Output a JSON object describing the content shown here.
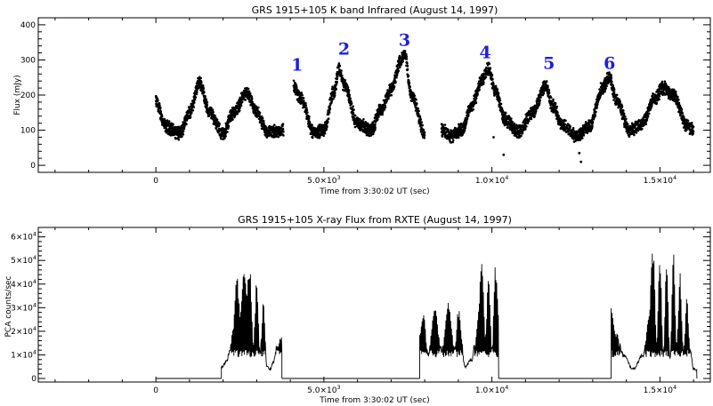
{
  "chart_data": [
    {
      "type": "scatter",
      "title": "GRS 1915+105 K band Infrared (August 14, 1997)",
      "xlabel": "Time from 3:30:02 UT (sec)",
      "ylabel": "Flux (mJy)",
      "xlim": [
        -3500,
        16500
      ],
      "ylim": [
        -20,
        420
      ],
      "x_ticks": [
        {
          "value": 0,
          "base": "0",
          "exp": ""
        },
        {
          "value": 5000,
          "base": "5.0×10",
          "exp": "3"
        },
        {
          "value": 10000,
          "base": "1.0×10",
          "exp": "4"
        },
        {
          "value": 15000,
          "base": "1.5×10",
          "exp": "4"
        }
      ],
      "y_ticks": [
        {
          "value": 0,
          "label": "0"
        },
        {
          "value": 100,
          "label": "100"
        },
        {
          "value": 200,
          "label": "200"
        },
        {
          "value": 300,
          "label": "300"
        },
        {
          "value": 400,
          "label": "400"
        }
      ],
      "segments": [
        {
          "x": [
            0,
            300,
            700,
            1000,
            1300,
            1600,
            2000,
            2300,
            2700,
            3000,
            3300,
            3800
          ],
          "y": [
            180,
            110,
            90,
            150,
            235,
            150,
            90,
            150,
            205,
            150,
            95,
            100
          ]
        },
        {
          "x": [
            4100,
            4300,
            4700,
            5000,
            5300,
            5450,
            5600,
            6000,
            6400,
            6700,
            7000,
            7300,
            7400,
            7600,
            8000
          ],
          "y": [
            225,
            190,
            95,
            100,
            210,
            275,
            230,
            120,
            100,
            160,
            215,
            300,
            315,
            200,
            95
          ]
        },
        {
          "x": [
            8500,
            8800,
            9100,
            9400,
            9700,
            9900,
            10100,
            10400,
            10800,
            11200,
            11600,
            11800,
            12100,
            12500,
            12900,
            13300,
            13500,
            13700,
            14100,
            14500,
            14800,
            15100,
            15400,
            15800,
            16000
          ],
          "y": [
            100,
            85,
            100,
            170,
            240,
            275,
            210,
            130,
            95,
            150,
            225,
            170,
            115,
            85,
            110,
            220,
            250,
            185,
            100,
            120,
            185,
            220,
            200,
            115,
            100
          ]
        }
      ],
      "outliers": {
        "x": [
          10050,
          10350,
          12600,
          12650,
          7350
        ],
        "y": [
          80,
          30,
          35,
          10,
          320
        ]
      },
      "annotations": [
        {
          "label": "1",
          "x": 4200,
          "y": 270
        },
        {
          "label": "2",
          "x": 5600,
          "y": 315
        },
        {
          "label": "3",
          "x": 7400,
          "y": 340
        },
        {
          "label": "4",
          "x": 9800,
          "y": 305
        },
        {
          "label": "5",
          "x": 11700,
          "y": 275
        },
        {
          "label": "6",
          "x": 13500,
          "y": 275
        }
      ]
    },
    {
      "type": "line",
      "title": "GRS 1915+105 X-ray Flux from RXTE (August 14, 1997)",
      "xlabel": "Time from 3:30:02 UT (sec)",
      "ylabel": "PCA counts/sec",
      "xlim": [
        -3500,
        16500
      ],
      "ylim": [
        -1500,
        64000
      ],
      "x_ticks": [
        {
          "value": 0,
          "base": "0",
          "exp": ""
        },
        {
          "value": 5000,
          "base": "5.0×10",
          "exp": "3"
        },
        {
          "value": 10000,
          "base": "1.0×10",
          "exp": "4"
        },
        {
          "value": 15000,
          "base": "1.5×10",
          "exp": "4"
        }
      ],
      "y_ticks": [
        {
          "value": 0,
          "base": "0",
          "exp": ""
        },
        {
          "value": 10000,
          "base": "1×10",
          "exp": "4"
        },
        {
          "value": 20000,
          "base": "2×10",
          "exp": "4"
        },
        {
          "value": 30000,
          "base": "3×10",
          "exp": "4"
        },
        {
          "value": 40000,
          "base": "4×10",
          "exp": "4"
        },
        {
          "value": 50000,
          "base": "5×10",
          "exp": "4"
        },
        {
          "value": 60000,
          "base": "6×10",
          "exp": "4"
        }
      ],
      "baseline": 0,
      "segments": [
        {
          "x": [
            1950,
            2100,
            2200,
            2300,
            2400,
            2500,
            2600,
            2700,
            2800,
            2900,
            3000,
            3100,
            3200,
            3300,
            3400,
            3500,
            3600,
            3700,
            3750
          ],
          "y": [
            5000,
            7000,
            12000,
            22000,
            47000,
            30000,
            46000,
            40000,
            47000,
            15000,
            42000,
            10000,
            35000,
            5000,
            4000,
            7000,
            13000,
            18000,
            19000
          ]
        },
        {
          "x": [
            7850,
            7950,
            8100,
            8300,
            8500,
            8700,
            8900,
            9000,
            9200,
            9400,
            9500,
            9600,
            9700,
            9800,
            9900,
            10000,
            10100,
            10200
          ],
          "y": [
            20000,
            30000,
            10000,
            32000,
            12000,
            34000,
            12000,
            30000,
            5000,
            8000,
            15000,
            30000,
            52000,
            20000,
            45000,
            12000,
            50000,
            28000
          ]
        },
        {
          "x": [
            13550,
            13700,
            13900,
            14200,
            14500,
            14650,
            14800,
            14900,
            15000,
            15100,
            15200,
            15300,
            15400,
            15500,
            15600,
            15700,
            15800,
            15900,
            16000,
            16100
          ],
          "y": [
            30000,
            20000,
            10000,
            4000,
            10000,
            25000,
            56000,
            15000,
            54000,
            10000,
            50000,
            8000,
            55000,
            15000,
            45000,
            10000,
            35000,
            12000,
            4000,
            3500
          ]
        }
      ]
    }
  ]
}
